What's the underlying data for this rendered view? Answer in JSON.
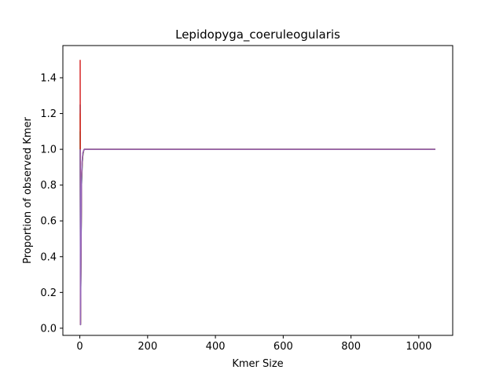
{
  "chart_data": {
    "type": "line",
    "title": "Lepidopyga_coeruleogularis",
    "xlabel": "Kmer Size",
    "ylabel": "Proportion of observed Kmer",
    "xlim": [
      -50,
      1100
    ],
    "ylim": [
      -0.04,
      1.58
    ],
    "xticks": [
      0,
      200,
      400,
      600,
      800,
      1000
    ],
    "yticks": [
      0.0,
      0.2,
      0.4,
      0.6,
      0.8,
      1.0,
      1.2,
      1.4
    ],
    "xtick_labels": [
      "0",
      "200",
      "400",
      "600",
      "800",
      "1000"
    ],
    "ytick_labels": [
      "0.0",
      "0.2",
      "0.4",
      "0.6",
      "0.8",
      "1.0",
      "1.2",
      "1.4"
    ],
    "grid": false,
    "series": [
      {
        "color": "#1f77b4",
        "x": [
          1,
          2,
          3,
          5,
          7,
          9,
          11,
          13,
          15,
          20,
          50,
          100,
          500,
          1049
        ],
        "y": [
          1.25,
          0.02,
          0.3,
          0.8,
          0.92,
          0.97,
          0.99,
          1.0,
          1.0,
          1.0,
          1.0,
          1.0,
          1.0,
          1.0
        ]
      },
      {
        "color": "#ff7f0e",
        "x": [
          1,
          2,
          3,
          5,
          7,
          9,
          11,
          13,
          15,
          20,
          50,
          100,
          500,
          1049
        ],
        "y": [
          1.2,
          0.03,
          0.32,
          0.82,
          0.93,
          0.97,
          0.99,
          1.0,
          1.0,
          1.0,
          1.0,
          1.0,
          1.0,
          1.0
        ]
      },
      {
        "color": "#2ca02c",
        "x": [
          1,
          2,
          3,
          5,
          7,
          9,
          11,
          13,
          15,
          20,
          50,
          100,
          500,
          1049
        ],
        "y": [
          1.1,
          0.02,
          0.28,
          0.8,
          0.92,
          0.97,
          0.99,
          1.0,
          1.0,
          1.0,
          1.0,
          1.0,
          1.0,
          1.0
        ]
      },
      {
        "color": "#d62728",
        "x": [
          1,
          2,
          3,
          5,
          7,
          9,
          11,
          13,
          15,
          20,
          50,
          100,
          500,
          1049
        ],
        "y": [
          1.5,
          0.02,
          0.3,
          0.83,
          0.93,
          0.98,
          0.99,
          1.0,
          1.0,
          1.0,
          1.0,
          1.0,
          1.0,
          1.0
        ]
      },
      {
        "color": "#9467bd",
        "x": [
          1,
          2,
          3,
          5,
          7,
          9,
          11,
          13,
          15,
          20,
          50,
          100,
          500,
          1049
        ],
        "y": [
          1.0,
          0.02,
          0.3,
          0.84,
          0.94,
          0.98,
          0.99,
          1.0,
          1.0,
          1.0,
          1.0,
          1.0,
          1.0,
          1.0
        ]
      }
    ]
  }
}
